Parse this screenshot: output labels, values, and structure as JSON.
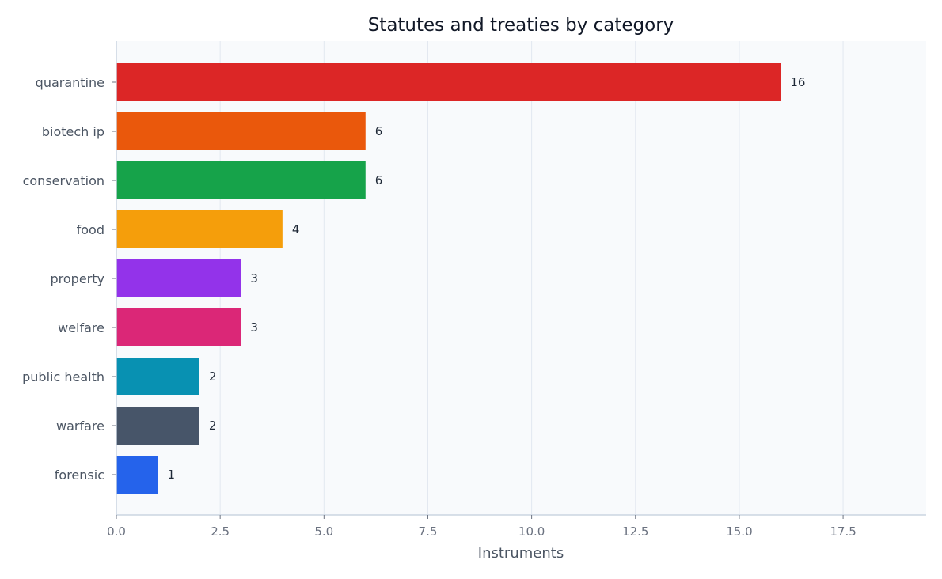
{
  "chart_data": {
    "type": "bar",
    "orientation": "horizontal",
    "title": "Statutes and treaties by category",
    "xlabel": "Instruments",
    "ylabel": "",
    "xlim": [
      0,
      19.5
    ],
    "x_ticks": [
      0,
      2.5,
      5,
      7.5,
      10,
      12.5,
      15,
      17.5
    ],
    "x_tick_labels": [
      "0.0",
      "2.5",
      "5.0",
      "7.5",
      "10.0",
      "12.5",
      "15.0",
      "17.5"
    ],
    "grid": "vertical",
    "categories": [
      "quarantine",
      "biotech ip",
      "conservation",
      "food",
      "property",
      "welfare",
      "public health",
      "warfare",
      "forensic"
    ],
    "values": [
      16,
      6,
      6,
      4,
      3,
      3,
      2,
      2,
      1
    ],
    "value_labels": [
      "16",
      "6",
      "6",
      "4",
      "3",
      "3",
      "2",
      "2",
      "1"
    ],
    "colors": [
      "#dc2626",
      "#ea580c",
      "#16a34a",
      "#f59e0b",
      "#9333ea",
      "#db2777",
      "#0891b2",
      "#475569",
      "#2563eb"
    ],
    "plot_background": "#f8fafc",
    "grid_color": "#e2e8f0",
    "axis_color": "#cbd5e1"
  }
}
